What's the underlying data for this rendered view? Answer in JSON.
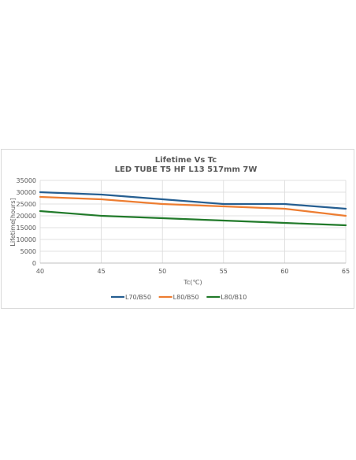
{
  "chart_data": {
    "type": "line",
    "title": "Lifetime Vs Tc",
    "subtitle": "LED TUBE T5 HF L13  517mm 7W",
    "xlabel": "Tc(℃)",
    "ylabel": "Lifetime[hours]",
    "x": [
      40,
      45,
      50,
      55,
      60,
      65
    ],
    "xlim": [
      40,
      65
    ],
    "ylim": [
      0,
      35000
    ],
    "x_ticks": [
      "40",
      "45",
      "50",
      "55",
      "60",
      "65"
    ],
    "x_tick_values": [
      40,
      45,
      50,
      55,
      60,
      65
    ],
    "y_ticks": [
      "0",
      "5000",
      "10000",
      "15000",
      "20000",
      "25000",
      "30000",
      "35000"
    ],
    "y_tick_values": [
      0,
      5000,
      10000,
      15000,
      20000,
      25000,
      30000,
      35000
    ],
    "grid": true,
    "legend_position": "bottom",
    "series": [
      {
        "name": "L70/B50",
        "color": "#255e91",
        "values": [
          30000,
          29000,
          27000,
          25000,
          25000,
          23000
        ]
      },
      {
        "name": "L80/B50",
        "color": "#ed7d31",
        "values": [
          28000,
          27000,
          25000,
          24000,
          23000,
          20000
        ]
      },
      {
        "name": "L80/B10",
        "color": "#217a2a",
        "values": [
          22000,
          20000,
          19000,
          18000,
          17000,
          16000
        ]
      }
    ]
  }
}
